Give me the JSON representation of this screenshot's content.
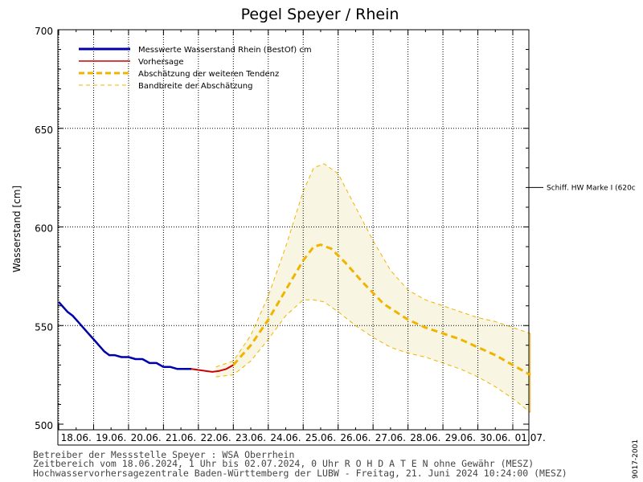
{
  "chart_data": {
    "type": "line",
    "title": "Pegel Speyer / Rhein",
    "ylabel": "Wasserstand [cm]",
    "ylim": [
      500,
      700
    ],
    "y_ticks": [
      500,
      550,
      600,
      650,
      700
    ],
    "x_ticks": [
      "18.06.",
      "19.06.",
      "20.06.",
      "21.06.",
      "22.06.",
      "23.06.",
      "24.06.",
      "25.06.",
      "26.06.",
      "27.06.",
      "28.06.",
      "29.06.",
      "30.06.",
      "01.07."
    ],
    "x_range_days": [
      0,
      14
    ],
    "grid": true,
    "legend_position": "top-left",
    "legend": [
      {
        "label": "Messwerte Wasserstand Rhein (BestOf)   cm",
        "style": "measured"
      },
      {
        "label": "Vorhersage",
        "style": "forecast"
      },
      {
        "label": "Abschätzung der weiteren Tendenz",
        "style": "tendency"
      },
      {
        "label": "Bandbreite der Abschätzung",
        "style": "band"
      }
    ],
    "reference_line": {
      "label": "Schiff. HW Marke I (620c",
      "y": 620
    },
    "series": [
      {
        "name": "Messwerte Wasserstand Rhein (BestOf)",
        "color": "#0000aa",
        "x": [
          0.0,
          0.1,
          0.25,
          0.4,
          0.55,
          0.7,
          0.85,
          1.0,
          1.15,
          1.3,
          1.45,
          1.6,
          1.8,
          2.0,
          2.2,
          2.4,
          2.6,
          2.8,
          3.0,
          3.2,
          3.4,
          3.6,
          3.8
        ],
        "y": [
          562,
          560,
          557,
          555,
          552,
          549,
          546,
          543,
          540,
          537,
          535,
          535,
          534,
          534,
          533,
          533,
          531,
          531,
          529,
          529,
          528,
          528,
          528
        ]
      },
      {
        "name": "Vorhersage",
        "color": "#cc0000",
        "x": [
          3.8,
          4.0,
          4.2,
          4.4,
          4.6,
          4.8,
          5.0
        ],
        "y": [
          528,
          527.5,
          527,
          526.5,
          527,
          528,
          530
        ]
      },
      {
        "name": "Abschätzung der weiteren Tendenz",
        "color": "#f0b400",
        "x": [
          5.0,
          5.5,
          6.0,
          6.5,
          7.0,
          7.3,
          7.5,
          7.8,
          8.2,
          8.7,
          9.3,
          10.0,
          10.5,
          11.0,
          11.5,
          12.0,
          12.5,
          13.0,
          13.5
        ],
        "y": [
          530,
          540,
          553,
          568,
          583,
          590,
          591,
          589,
          582,
          572,
          561,
          553,
          549,
          546,
          543,
          539,
          535,
          530,
          525
        ]
      }
    ],
    "band": {
      "name": "Bandbreite der Abschätzung",
      "color": "#f0b400",
      "fill": "#f8f6e2",
      "x": [
        4.5,
        5.0,
        5.5,
        6.0,
        6.5,
        7.0,
        7.3,
        7.6,
        8.0,
        8.5,
        9.0,
        9.5,
        10.0,
        10.5,
        11.0,
        11.5,
        12.0,
        12.5,
        13.0,
        13.5
      ],
      "upper": [
        529,
        532,
        545,
        565,
        590,
        618,
        630,
        632,
        627,
        610,
        593,
        578,
        568,
        563,
        560,
        557,
        554,
        552,
        549,
        546
      ],
      "lower": [
        524,
        525,
        532,
        543,
        555,
        563,
        563,
        562,
        557,
        550,
        544,
        539,
        536,
        534,
        531,
        528,
        524,
        519,
        513,
        506
      ]
    }
  },
  "footer": {
    "line1": "Betreiber der Messstelle Speyer : WSA Oberrhein",
    "line2": "Zeitbereich vom 18.06.2024, 1 Uhr bis 02.07.2024, 0 Uhr   R O H D A T E N ohne Gewähr (MESZ)",
    "line3": "Hochwasservorhersagezentrale Baden-Württemberg der LUBW - Freitag, 21. Juni 2024 10:24:00 (MESZ)"
  },
  "side_code": "9017-2001"
}
